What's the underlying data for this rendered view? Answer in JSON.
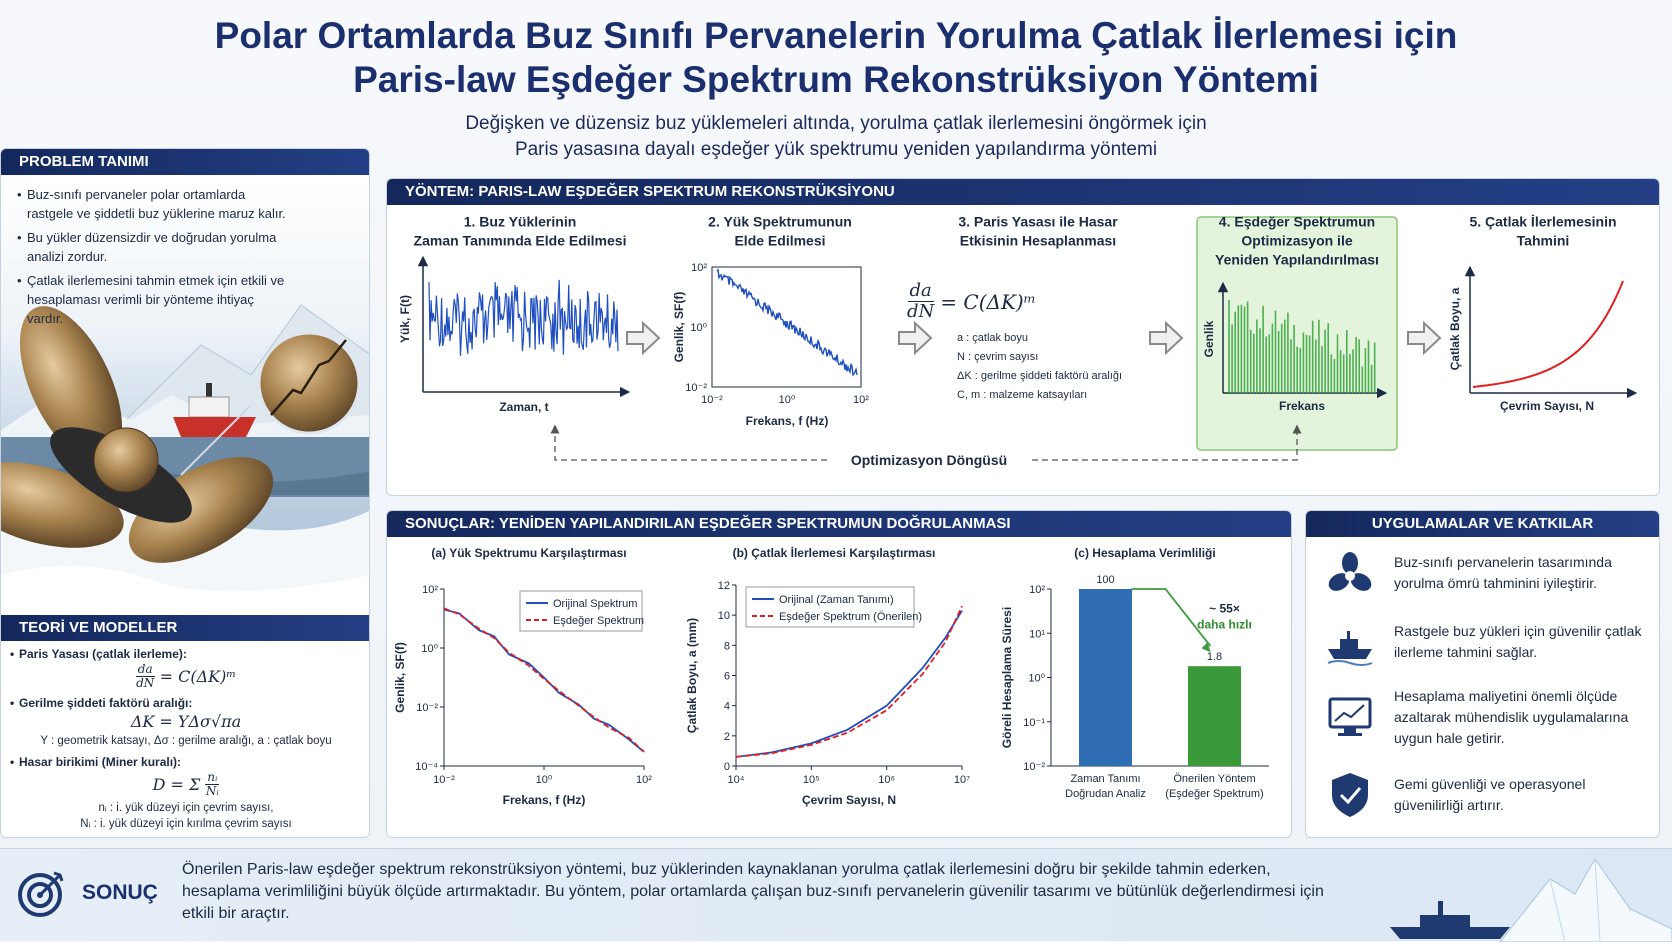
{
  "header": {
    "title": [
      "Polar Ortamlarda Buz Sınıfı Pervanelerin Yorulma Çatlak İlerlemesi için",
      "Paris-law Eşdeğer Spektrum Rekonstrüksiyon Yöntemi"
    ],
    "subtitle": [
      "Değişken ve düzensiz buz yüklemeleri altında, yorulma çatlak ilerlemesini öngörmek için",
      "Paris yasasına dayalı eşdeğer yük spektrumu yeniden yapılandırma yöntemi"
    ]
  },
  "problem": {
    "heading": "PROBLEM TANIMI",
    "bullets": [
      "Buz-sınıfı pervaneler polar ortamlarda rastgele ve şiddetli buz yüklerine maruz kalır.",
      "Bu yükler düzensizdir ve doğrudan yorulma analizi zordur.",
      "Çatlak ilerlemesini tahmin etmek için etkili ve hesaplaması verimli bir yönteme ihtiyaç vardır."
    ]
  },
  "theory": {
    "heading": "TEORİ VE MODELLER",
    "items": [
      {
        "label": "Paris Yasası (çatlak ilerleme):",
        "formula": {
          "numerator": "da",
          "denominator": "dN",
          "rhs": "= C(ΔK)ᵐ"
        }
      },
      {
        "label": "Gerilme şiddeti faktörü aralığı:",
        "formula": "ΔK = YΔσ√πa",
        "notes": [
          "Y : geometrik katsayı, Δσ : gerilme aralığı, a : çatlak boyu"
        ]
      },
      {
        "label": "Hasar birikimi (Miner kuralı):",
        "formula": {
          "lhs": "D = Σ",
          "numerator": "nᵢ",
          "denominator": "Nᵢ"
        },
        "notes": [
          "nᵢ : i. yük düzeyi için çevrim sayısı,",
          "Nᵢ : i. yük düzeyi için kırılma çevrim sayısı"
        ]
      }
    ]
  },
  "method": {
    "heading": "YÖNTEM: PARIS-LAW EŞDEĞER SPEKTRUM REKONSTRÜKSİYONU",
    "steps": [
      {
        "title": [
          "1. Buz Yüklerinin",
          "Zaman Tanımında Elde Edilmesi"
        ],
        "xlabel": "Zaman,  t",
        "ylabel": "Yük, F(t)"
      },
      {
        "title": [
          "2. Yük Spektrumunun",
          "Elde Edilmesi"
        ],
        "xlabel": "Frekans,  f (Hz)",
        "ylabel": "Genlik, SF(f)",
        "xticks": [
          "10⁻²",
          "10⁰",
          "10²"
        ],
        "yticks": [
          "10²",
          "10⁰",
          "10⁻²"
        ]
      },
      {
        "title": [
          "3. Paris Yasası ile Hasar",
          "Etkisinin Hesaplanması"
        ],
        "formula": {
          "numerator": "da",
          "denominator": "dN",
          "rhs": "= C(ΔK)ᵐ"
        },
        "legend": [
          "a : çatlak boyu",
          "N : çevrim sayısı",
          "ΔK : gerilme şiddeti faktörü aralığı",
          "C, m : malzeme katsayıları"
        ]
      },
      {
        "title": [
          "4. Eşdeğer Spektrumun",
          "Optimizasyon ile",
          "Yeniden Yapılandırılması"
        ],
        "xlabel": "Frekans",
        "ylabel": "Genlik"
      },
      {
        "title": [
          "5. Çatlak İlerlemesinin",
          "Tahmini"
        ],
        "xlabel": "Çevrim Sayısı,  N",
        "ylabel": "Çatlak Boyu, a"
      }
    ],
    "loop": "Optimizasyon Döngüsü"
  },
  "results": {
    "heading": "SONUÇLAR: YENİDEN YAPILANDIRILAN EŞDEĞER SPEKTRUMUN DOĞRULANMASI",
    "charts": [
      {
        "type": "line",
        "title": "(a) Yük Spektrumu Karşılaştırması",
        "xlabel": "Frekans,  f (Hz)",
        "ylabel": "Genlik, SF(f)",
        "log_x": true,
        "log_y": true,
        "xlim": [
          0.01,
          100
        ],
        "ylim": [
          0.0001,
          100
        ],
        "xticks": [
          {
            "value": 0.01,
            "label": "10⁻²"
          },
          {
            "value": 1,
            "label": "10⁰"
          },
          {
            "value": 100,
            "label": "10²"
          }
        ],
        "yticks": [
          {
            "value": 0.0001,
            "label": "10⁻⁴"
          },
          {
            "value": 0.01,
            "label": "10⁻²"
          },
          {
            "value": 1,
            "label": "10⁰"
          },
          {
            "value": 100,
            "label": "10²"
          }
        ],
        "legend": "upper right",
        "x": [
          0.01,
          0.02,
          0.05,
          0.1,
          0.2,
          0.5,
          1,
          2,
          5,
          10,
          20,
          50,
          100
        ],
        "series": [
          {
            "name": "Orijinal Spektrum",
            "color": "#1f4fbf",
            "values": [
              20,
              15,
              4,
              2.5,
              0.6,
              0.3,
              0.1,
              0.03,
              0.012,
              0.004,
              0.0025,
              0.0008,
              0.0003
            ]
          },
          {
            "name": "Eşdeğer Spektrum",
            "color": "#e02020",
            "dashed": true,
            "values": [
              22,
              14,
              4.5,
              2.2,
              0.7,
              0.25,
              0.09,
              0.035,
              0.011,
              0.0045,
              0.002,
              0.0009,
              0.0003
            ]
          }
        ]
      },
      {
        "type": "line",
        "title": "(b) Çatlak İlerlemesi Karşılaştırması",
        "xlabel": "Çevrim Sayısı,  N",
        "ylabel": "Çatlak Boyu, a (mm)",
        "log_x": true,
        "xlim": [
          10000,
          10000000
        ],
        "ylim": [
          0,
          12
        ],
        "xticks": [
          {
            "value": 10000,
            "label": "10⁴"
          },
          {
            "value": 100000,
            "label": "10⁵"
          },
          {
            "value": 1000000,
            "label": "10⁶"
          },
          {
            "value": 10000000,
            "label": "10⁷"
          }
        ],
        "yticks": [
          0,
          2,
          4,
          6,
          8,
          10,
          12
        ],
        "legend": "upper left",
        "x": [
          10000,
          30000,
          100000,
          300000,
          1000000,
          3000000,
          6000000,
          10000000
        ],
        "series": [
          {
            "name": "Orijinal (Zaman Tanımı)",
            "color": "#1f4fbf",
            "values": [
              0.6,
              0.9,
              1.5,
              2.4,
              4,
              6.5,
              8.5,
              10.3
            ]
          },
          {
            "name": "Eşdeğer Spektrum (Önerilen)",
            "color": "#e02020",
            "dashed": true,
            "values": [
              0.6,
              0.85,
              1.4,
              2.2,
              3.7,
              6.1,
              8.2,
              10.6
            ]
          }
        ]
      },
      {
        "type": "bar",
        "title": "(c) Hesaplama Verimliliği",
        "ylabel": "Göreli Hesaplama Süresi",
        "log_y": true,
        "ylim": [
          0.01,
          100
        ],
        "yticks": [
          {
            "value": 0.01,
            "label": "10⁻²"
          },
          {
            "value": 0.1,
            "label": "10⁻¹"
          },
          {
            "value": 1,
            "label": "10⁰"
          },
          {
            "value": 10,
            "label": "10¹"
          },
          {
            "value": 100,
            "label": "10²"
          }
        ],
        "categories": [
          [
            "Zaman Tanımı",
            "Doğrudan Analiz"
          ],
          [
            "Önerilen Yöntem",
            "(Eşdeğer Spektrum)"
          ]
        ],
        "values": [
          100,
          1.8
        ],
        "colors": [
          "#2f6db5",
          "#3a9a3a"
        ],
        "annotation": [
          "~ 55×",
          "daha hızlı"
        ]
      }
    ]
  },
  "applications": {
    "heading": "UYGULAMALAR VE KATKILAR",
    "items": [
      "Buz-sınıfı pervanelerin tasarımında yorulma ömrü tahminini iyileştirir.",
      "Rastgele buz yükleri için güvenilir çatlak ilerleme tahmini sağlar.",
      "Hesaplama maliyetini önemli ölçüde azaltarak mühendislik uygulamalarına uygun hale getirir.",
      "Gemi güvenliği ve operasyonel güvenilirliği artırır."
    ]
  },
  "conclusion": {
    "heading": "SONUÇ",
    "text": "Önerilen Paris-law eşdeğer spektrum rekonstrüksiyon yöntemi, buz yüklerinden kaynaklanan yorulma çatlak ilerlemesini doğru bir şekilde tahmin ederken, hesaplama verimliliğini büyük ölçüde artırmaktadır. Bu yöntem, polar ortamlarda çalışan buz-sınıfı pervanelerin güvenilir tasarımı ve bütünlük değerlendirmesi için etkili bir araçtır."
  }
}
